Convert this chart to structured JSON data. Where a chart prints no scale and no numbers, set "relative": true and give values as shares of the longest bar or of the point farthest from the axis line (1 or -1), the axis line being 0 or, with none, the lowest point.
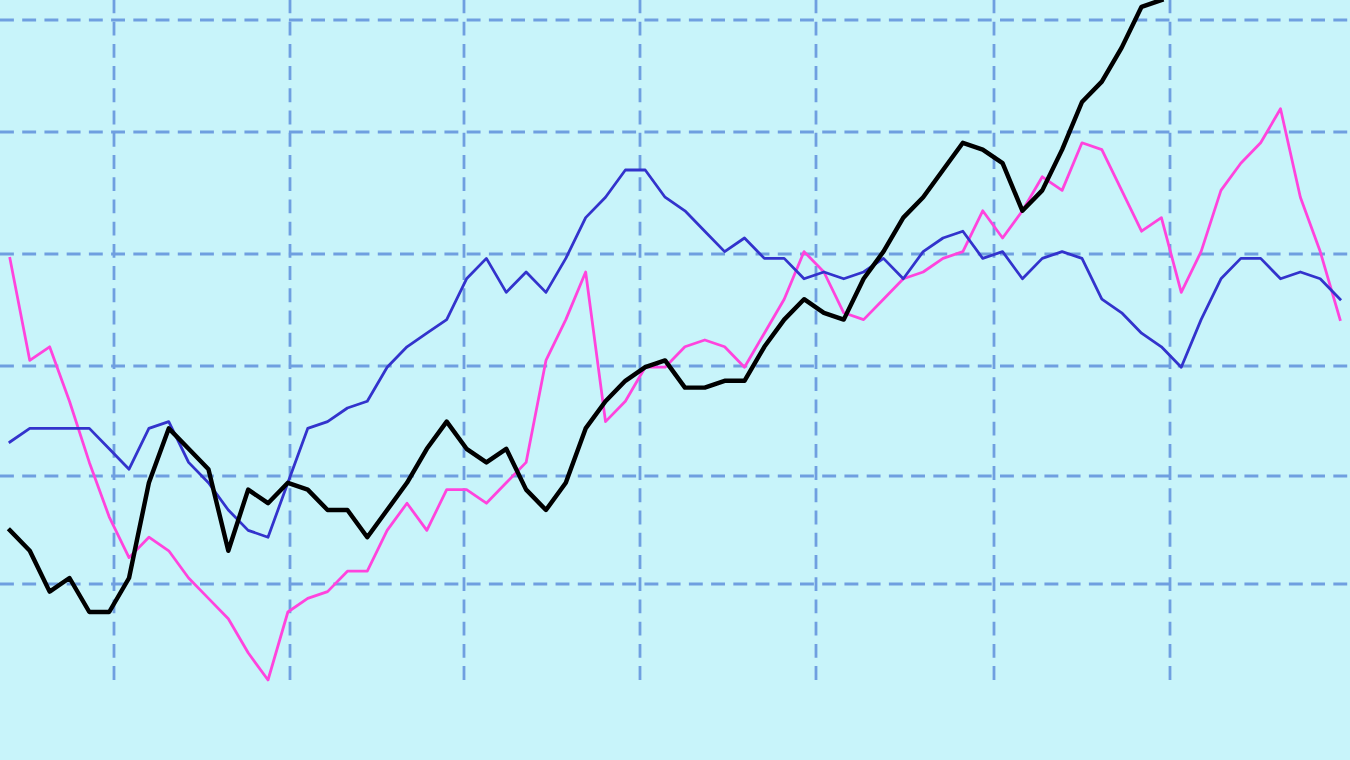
{
  "chart_data": {
    "type": "line",
    "relative": true,
    "grid": true,
    "marker": "none",
    "line_style": "solid",
    "categories": [
      null,
      null,
      null,
      null,
      null,
      null,
      null,
      null,
      null,
      null,
      null,
      null,
      null,
      null,
      null,
      null,
      null,
      null,
      null,
      null,
      null,
      null,
      null,
      null,
      null,
      null,
      null,
      null,
      null,
      null,
      null,
      null,
      null,
      null,
      null,
      null,
      null,
      null,
      null,
      null,
      null,
      null,
      null,
      null,
      null,
      null,
      null,
      null,
      null,
      null,
      null,
      null,
      null,
      null,
      null,
      null,
      null,
      null,
      null,
      null,
      null,
      null,
      null,
      null,
      null,
      null,
      null,
      null
    ],
    "series": [
      {
        "color": "#ff44dd",
        "values": [
          0.62,
          0.47,
          0.49,
          0.41,
          0.32,
          0.24,
          0.18,
          0.21,
          0.19,
          0.15,
          0.12,
          0.09,
          0.04,
          0,
          0.1,
          0.12,
          0.13,
          0.16,
          0.16,
          0.22,
          0.26,
          0.22,
          0.28,
          0.28,
          0.26,
          0.29,
          0.32,
          0.47,
          0.53,
          0.6,
          0.38,
          0.41,
          0.46,
          0.46,
          0.49,
          0.5,
          0.49,
          0.46,
          0.51,
          0.56,
          0.63,
          0.6,
          0.54,
          0.53,
          0.56,
          0.59,
          0.6,
          0.62,
          0.63,
          0.69,
          0.65,
          0.69,
          0.74,
          0.72,
          0.79,
          0.78,
          0.72,
          0.66,
          0.68,
          0.57,
          0.63,
          0.72,
          0.76,
          0.79,
          0.84,
          0.71,
          0.63,
          0.53
        ]
      },
      {
        "color": "#3333cc",
        "values": [
          0.35,
          0.37,
          0.37,
          0.37,
          0.37,
          0.34,
          0.31,
          0.37,
          0.38,
          0.32,
          0.29,
          0.25,
          0.22,
          0.21,
          0.29,
          0.37,
          0.38,
          0.4,
          0.41,
          0.46,
          0.49,
          0.51,
          0.53,
          0.59,
          0.62,
          0.57,
          0.6,
          0.57,
          0.62,
          0.68,
          0.71,
          0.75,
          0.75,
          0.71,
          0.69,
          0.66,
          0.63,
          0.65,
          0.62,
          0.62,
          0.59,
          0.6,
          0.59,
          0.6,
          0.62,
          0.59,
          0.63,
          0.65,
          0.66,
          0.62,
          0.63,
          0.59,
          0.62,
          0.63,
          0.62,
          0.56,
          0.54,
          0.51,
          0.49,
          0.46,
          0.53,
          0.59,
          0.62,
          0.62,
          0.59,
          0.6,
          0.59,
          0.56
        ]
      },
      {
        "color": "#000000",
        "values": [
          0.22,
          0.19,
          0.13,
          0.15,
          0.1,
          0.1,
          0.15,
          0.29,
          0.37,
          0.34,
          0.31,
          0.19,
          0.28,
          0.26,
          0.29,
          0.28,
          0.25,
          0.25,
          0.21,
          0.25,
          0.29,
          0.34,
          0.38,
          0.34,
          0.32,
          0.34,
          0.28,
          0.25,
          0.29,
          0.37,
          0.41,
          0.44,
          0.46,
          0.47,
          0.43,
          0.43,
          0.44,
          0.44,
          0.49,
          0.53,
          0.56,
          0.54,
          0.53,
          0.59,
          0.63,
          0.68,
          0.71,
          0.75,
          0.79,
          0.78,
          0.76,
          0.69,
          0.72,
          0.78,
          0.85,
          0.88,
          0.93,
          0.99,
          1,
          null,
          null,
          null,
          null,
          null,
          null,
          null,
          null,
          null
        ]
      }
    ]
  }
}
